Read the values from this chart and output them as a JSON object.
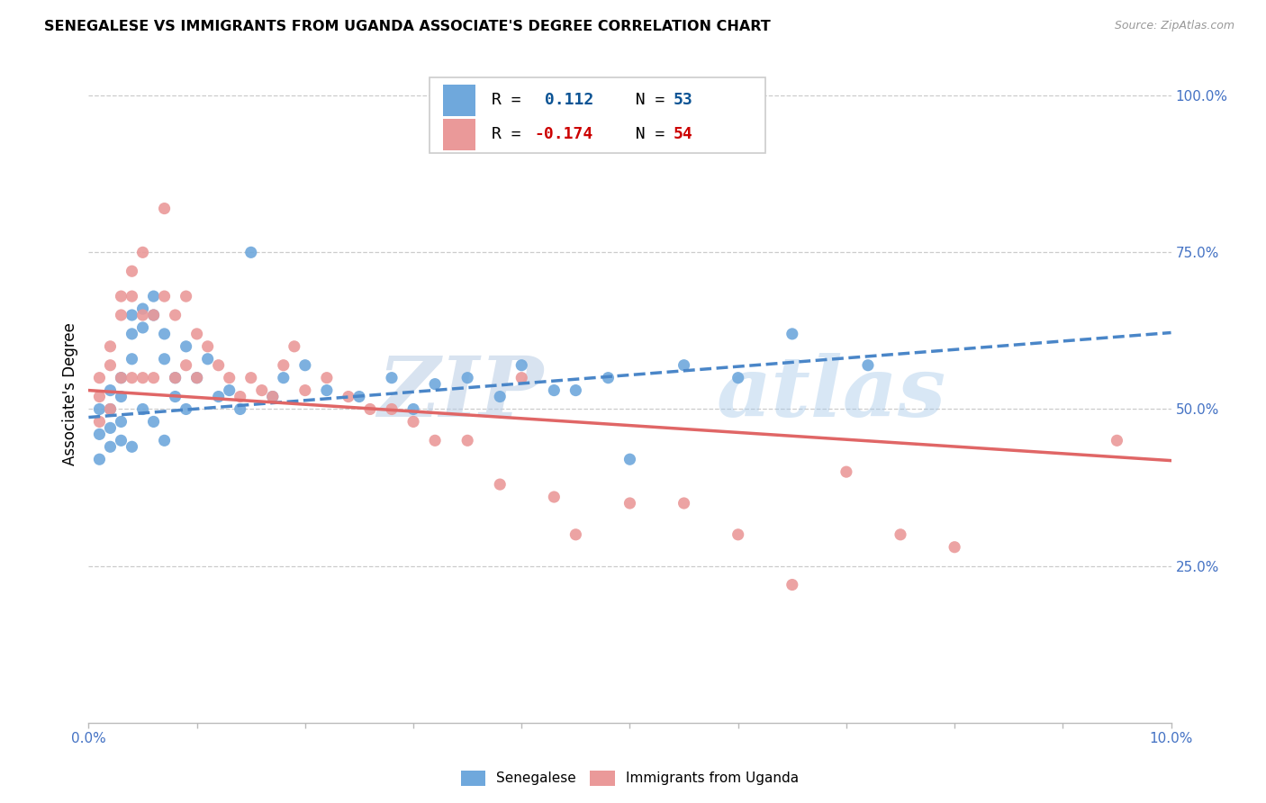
{
  "title": "SENEGALESE VS IMMIGRANTS FROM UGANDA ASSOCIATE'S DEGREE CORRELATION CHART",
  "source": "Source: ZipAtlas.com",
  "ylabel": "Associate's Degree",
  "xlim": [
    0.0,
    0.1
  ],
  "ylim": [
    0.0,
    1.05
  ],
  "color_blue": "#6fa8dc",
  "color_pink": "#ea9999",
  "color_blue_line": "#4a86c8",
  "color_pink_line": "#e06666",
  "watermark_zip": "ZIP",
  "watermark_atlas": "atlas",
  "blue_line_y0": 0.487,
  "blue_line_y1": 0.622,
  "pink_line_y0": 0.53,
  "pink_line_y1": 0.418,
  "legend_r1_prefix": "R = ",
  "legend_r1_val": " 0.112",
  "legend_n1_prefix": "N = ",
  "legend_n1_val": "53",
  "legend_r2_prefix": "R = ",
  "legend_r2_val": "-0.174",
  "legend_n2_prefix": "N = ",
  "legend_n2_val": "54",
  "blue_x": [
    0.001,
    0.001,
    0.001,
    0.002,
    0.002,
    0.002,
    0.002,
    0.003,
    0.003,
    0.003,
    0.003,
    0.004,
    0.004,
    0.004,
    0.004,
    0.005,
    0.005,
    0.005,
    0.006,
    0.006,
    0.006,
    0.007,
    0.007,
    0.007,
    0.008,
    0.008,
    0.009,
    0.009,
    0.01,
    0.011,
    0.012,
    0.013,
    0.014,
    0.015,
    0.017,
    0.018,
    0.02,
    0.022,
    0.025,
    0.028,
    0.03,
    0.032,
    0.035,
    0.038,
    0.04,
    0.043,
    0.045,
    0.048,
    0.05,
    0.055,
    0.06,
    0.065,
    0.072
  ],
  "blue_y": [
    0.5,
    0.46,
    0.42,
    0.53,
    0.5,
    0.47,
    0.44,
    0.55,
    0.52,
    0.48,
    0.45,
    0.65,
    0.62,
    0.58,
    0.44,
    0.66,
    0.63,
    0.5,
    0.68,
    0.65,
    0.48,
    0.62,
    0.58,
    0.45,
    0.55,
    0.52,
    0.6,
    0.5,
    0.55,
    0.58,
    0.52,
    0.53,
    0.5,
    0.75,
    0.52,
    0.55,
    0.57,
    0.53,
    0.52,
    0.55,
    0.5,
    0.54,
    0.55,
    0.52,
    0.57,
    0.53,
    0.53,
    0.55,
    0.42,
    0.57,
    0.55,
    0.62,
    0.57
  ],
  "pink_x": [
    0.001,
    0.001,
    0.001,
    0.002,
    0.002,
    0.002,
    0.003,
    0.003,
    0.003,
    0.004,
    0.004,
    0.004,
    0.005,
    0.005,
    0.005,
    0.006,
    0.006,
    0.007,
    0.007,
    0.008,
    0.008,
    0.009,
    0.009,
    0.01,
    0.01,
    0.011,
    0.012,
    0.013,
    0.014,
    0.015,
    0.016,
    0.017,
    0.018,
    0.019,
    0.02,
    0.022,
    0.024,
    0.026,
    0.028,
    0.03,
    0.032,
    0.035,
    0.038,
    0.04,
    0.043,
    0.045,
    0.05,
    0.055,
    0.06,
    0.065,
    0.07,
    0.075,
    0.08,
    0.095
  ],
  "pink_y": [
    0.55,
    0.52,
    0.48,
    0.6,
    0.57,
    0.5,
    0.68,
    0.65,
    0.55,
    0.72,
    0.68,
    0.55,
    0.75,
    0.65,
    0.55,
    0.65,
    0.55,
    0.82,
    0.68,
    0.65,
    0.55,
    0.68,
    0.57,
    0.62,
    0.55,
    0.6,
    0.57,
    0.55,
    0.52,
    0.55,
    0.53,
    0.52,
    0.57,
    0.6,
    0.53,
    0.55,
    0.52,
    0.5,
    0.5,
    0.48,
    0.45,
    0.45,
    0.38,
    0.55,
    0.36,
    0.3,
    0.35,
    0.35,
    0.3,
    0.22,
    0.4,
    0.3,
    0.28,
    0.45
  ]
}
